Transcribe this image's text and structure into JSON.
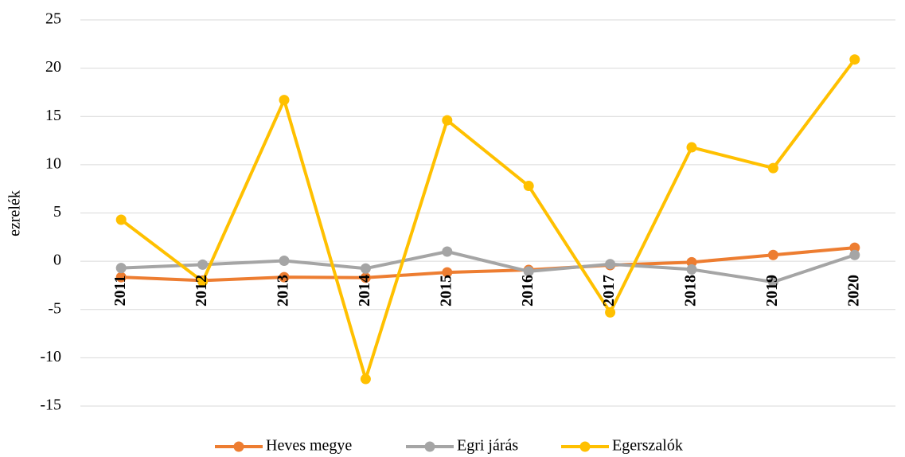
{
  "chart_data": {
    "type": "line",
    "y_label": "ezrelék",
    "categories": [
      "2011",
      "2012",
      "2013",
      "2014",
      "2015",
      "2016",
      "2017",
      "2018",
      "2019",
      "2020"
    ],
    "series": [
      {
        "name": "Heves megye",
        "color": "#ed7d31",
        "values": [
          -1.65,
          -2.0,
          -1.65,
          -1.7,
          -1.15,
          -0.9,
          -0.4,
          -0.1,
          0.65,
          1.4
        ]
      },
      {
        "name": "Egri járás",
        "color": "#a5a5a5",
        "values": [
          -0.7,
          -0.35,
          0.05,
          -0.75,
          1.0,
          -1.05,
          -0.3,
          -0.85,
          -2.15,
          0.65
        ]
      },
      {
        "name": "Egerszalók",
        "color": "#ffc000",
        "values": [
          4.3,
          -2.1,
          16.7,
          -12.2,
          14.6,
          7.8,
          -5.3,
          11.8,
          9.65,
          20.9
        ]
      }
    ],
    "ylim": [
      -15,
      25
    ],
    "yticks": [
      -15,
      -10,
      -5,
      0,
      5,
      10,
      15,
      20,
      25
    ],
    "grid": true,
    "legend": "bottom"
  }
}
